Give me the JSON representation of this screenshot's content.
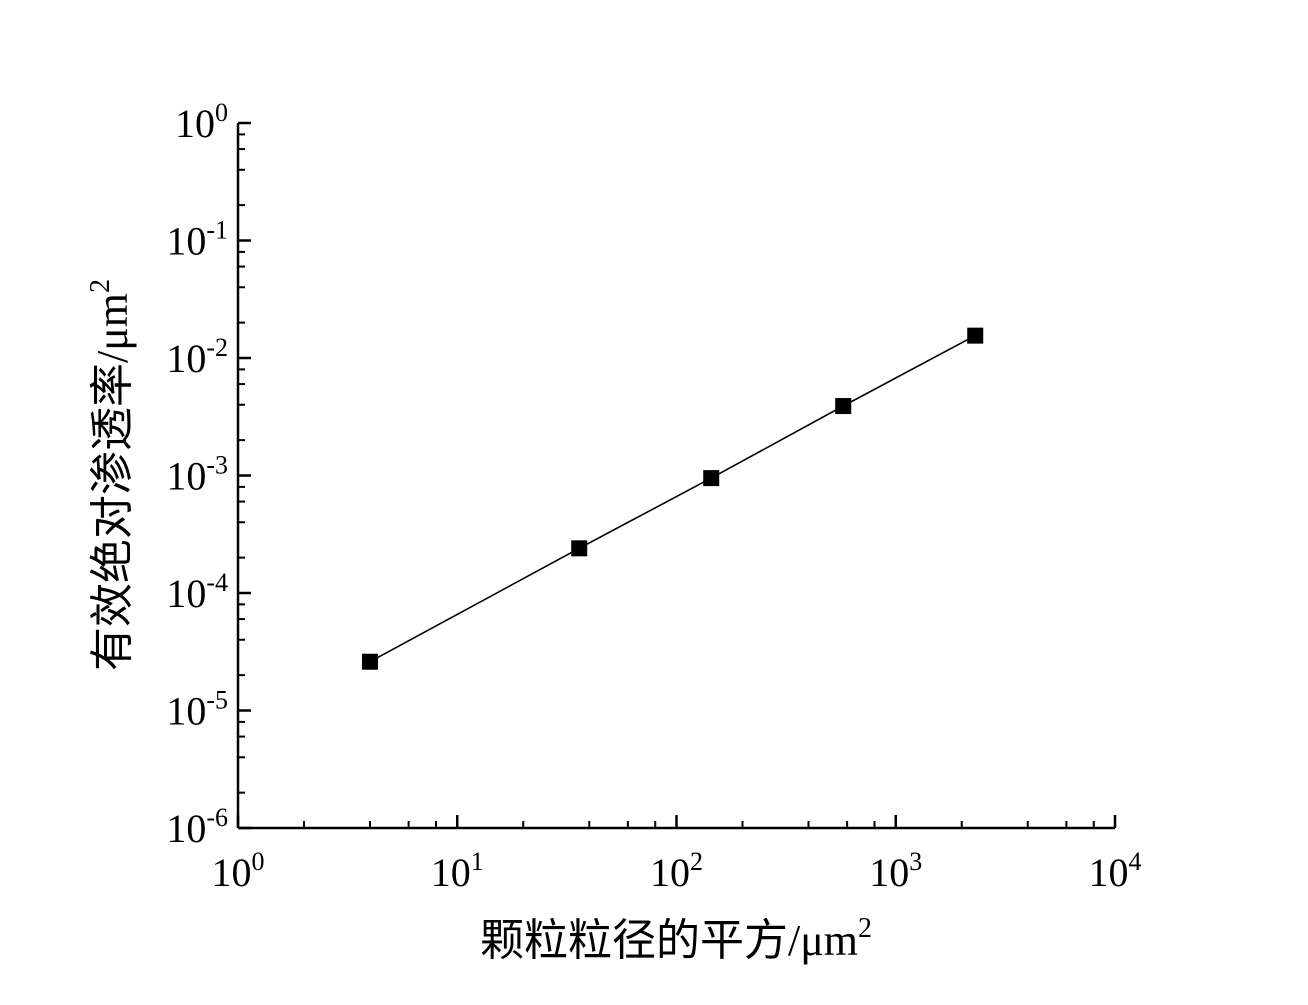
{
  "chart_data": {
    "type": "scatter",
    "xlabel": "颗粒粒径的平方/μm",
    "xlabel_sup": "2",
    "ylabel": "有效绝对渗透率/μm",
    "ylabel_sup": "2",
    "xscale": "log",
    "yscale": "log",
    "xlim": [
      1,
      10000
    ],
    "ylim": [
      1e-06,
      1
    ],
    "x_ticks": [
      {
        "base": "10",
        "exp": "0",
        "value": 1
      },
      {
        "base": "10",
        "exp": "1",
        "value": 10
      },
      {
        "base": "10",
        "exp": "2",
        "value": 100
      },
      {
        "base": "10",
        "exp": "3",
        "value": 1000
      },
      {
        "base": "10",
        "exp": "4",
        "value": 10000
      }
    ],
    "y_ticks": [
      {
        "base": "10",
        "exp": "0",
        "value": 1
      },
      {
        "base": "10",
        "exp": "-1",
        "value": 0.1
      },
      {
        "base": "10",
        "exp": "-2",
        "value": 0.01
      },
      {
        "base": "10",
        "exp": "-3",
        "value": 0.001
      },
      {
        "base": "10",
        "exp": "-4",
        "value": 0.0001
      },
      {
        "base": "10",
        "exp": "-5",
        "value": 1e-05
      },
      {
        "base": "10",
        "exp": "-6",
        "value": 1e-06
      }
    ],
    "series": [
      {
        "marker": "square",
        "color": "#000000",
        "connect": true,
        "x": [
          4,
          36,
          144,
          576,
          2304
        ],
        "y": [
          2.6e-05,
          0.00024,
          0.00095,
          0.0039,
          0.0155
        ]
      }
    ],
    "grid": false,
    "legend": "none"
  }
}
